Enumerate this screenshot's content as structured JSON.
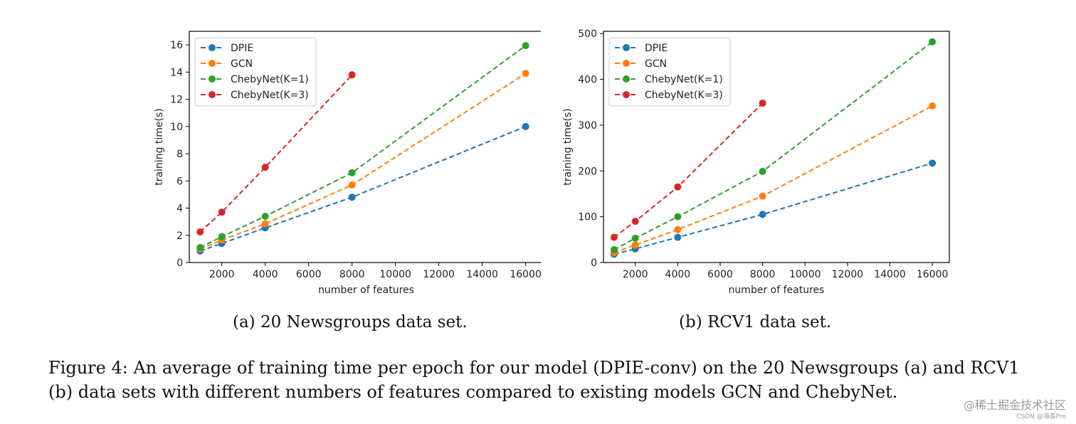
{
  "chart_data": [
    {
      "type": "line",
      "title": "",
      "xlabel": "number of features",
      "ylabel": "training time(s)",
      "x": [
        1000,
        2000,
        4000,
        8000,
        16000
      ],
      "xlim": [
        500,
        16800
      ],
      "ylim": [
        0,
        17
      ],
      "xticks": [
        2000,
        4000,
        6000,
        8000,
        10000,
        12000,
        14000,
        16000
      ],
      "yticks": [
        0,
        2,
        4,
        6,
        8,
        10,
        12,
        14,
        16
      ],
      "legend": "top-left",
      "series": [
        {
          "name": "DPIE",
          "color": "#1f77b4",
          "x": [
            1000,
            2000,
            4000,
            8000,
            16000
          ],
          "values": [
            0.85,
            1.4,
            2.55,
            4.8,
            10.0
          ]
        },
        {
          "name": "GCN",
          "color": "#ff7f0e",
          "x": [
            1000,
            2000,
            4000,
            8000,
            16000
          ],
          "values": [
            1.0,
            1.65,
            2.85,
            5.7,
            13.9
          ]
        },
        {
          "name": "ChebyNet(K=1)",
          "color": "#2ca02c",
          "x": [
            1000,
            2000,
            4000,
            8000,
            16000
          ],
          "values": [
            1.1,
            1.9,
            3.4,
            6.6,
            15.95
          ]
        },
        {
          "name": "ChebyNet(K=3)",
          "color": "#d62728",
          "x": [
            1000,
            2000,
            4000,
            8000
          ],
          "values": [
            2.25,
            3.7,
            7.0,
            13.8
          ]
        }
      ]
    },
    {
      "type": "line",
      "title": "",
      "xlabel": "number of features",
      "ylabel": "training time(s)",
      "x": [
        1000,
        2000,
        4000,
        8000,
        16000
      ],
      "xlim": [
        500,
        16800
      ],
      "ylim": [
        0,
        505
      ],
      "xticks": [
        2000,
        4000,
        6000,
        8000,
        10000,
        12000,
        14000,
        16000
      ],
      "yticks": [
        0,
        100,
        200,
        300,
        400,
        500
      ],
      "legend": "top-left",
      "series": [
        {
          "name": "DPIE",
          "color": "#1f77b4",
          "x": [
            1000,
            2000,
            4000,
            8000,
            16000
          ],
          "values": [
            18,
            30,
            55,
            105,
            217
          ]
        },
        {
          "name": "GCN",
          "color": "#ff7f0e",
          "x": [
            1000,
            2000,
            4000,
            8000,
            16000
          ],
          "values": [
            22,
            38,
            72,
            145,
            342
          ]
        },
        {
          "name": "ChebyNet(K=1)",
          "color": "#2ca02c",
          "x": [
            1000,
            2000,
            4000,
            8000,
            16000
          ],
          "values": [
            28,
            53,
            100,
            199,
            482
          ]
        },
        {
          "name": "ChebyNet(K=3)",
          "color": "#d62728",
          "x": [
            1000,
            2000,
            4000,
            8000
          ],
          "values": [
            55,
            90,
            165,
            348
          ]
        }
      ]
    }
  ],
  "subcaptions": {
    "a": "(a) 20 Newsgroups data set.",
    "b": "(b) RCV1 data set."
  },
  "caption": {
    "line1": "Figure 4:  An average of training time per epoch for our model (DPIE-conv) on the 20 Newsgroups (a) and RCV1",
    "line2": "(b) data sets with different numbers of features compared to existing models GCN and ChebyNet."
  },
  "watermark": {
    "main": "@稀土掘金技术社区",
    "sub": "CSDN @海泰Pro"
  }
}
